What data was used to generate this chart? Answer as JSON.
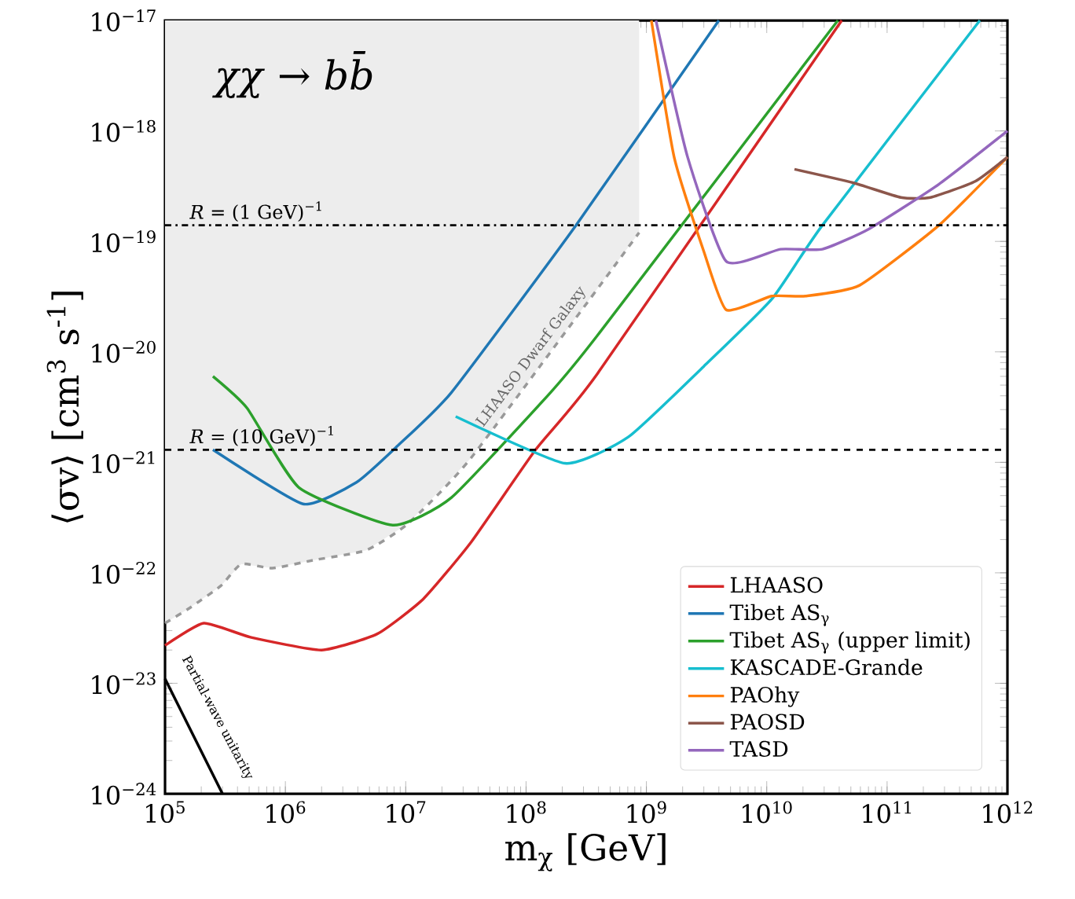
{
  "chart_data": {
    "type": "line",
    "xlabel": "m$_{χ}$ [GeV]",
    "ylabel": "⟨σv⟩ [cm$^{3}$ s$^{-1}$]",
    "log": "xy",
    "grid": false,
    "legend": "bottom right",
    "xlim": [
      100000,
      1000000000000
    ],
    "ylim": [
      1e-24,
      1e-17
    ],
    "xticks": [
      {
        "value": 100000,
        "label": "10$^{5}$"
      },
      {
        "value": 1000000,
        "label": "10$^{6}$"
      },
      {
        "value": 10000000,
        "label": "10$^{7}$"
      },
      {
        "value": 100000000,
        "label": "10$^{8}$"
      },
      {
        "value": 1000000000,
        "label": "10$^{9}$"
      },
      {
        "value": 10000000000,
        "label": "10$^{10}$"
      },
      {
        "value": 100000000000,
        "label": "10$^{11}$"
      },
      {
        "value": 1000000000000,
        "label": "10$^{12}$"
      }
    ],
    "yticks": [
      {
        "value": 1e-24,
        "label": "10$^{−24}$"
      },
      {
        "value": 1e-23,
        "label": "10$^{−23}$"
      },
      {
        "value": 1e-22,
        "label": "10$^{−22}$"
      },
      {
        "value": 1e-21,
        "label": "10$^{−21}$"
      },
      {
        "value": 1e-20,
        "label": "10$^{−20}$"
      },
      {
        "value": 1e-19,
        "label": "10$^{−19}$"
      },
      {
        "value": 1e-18,
        "label": "10$^{−18}$"
      },
      {
        "value": 1e-17,
        "label": "10$^{−17}$"
      }
    ],
    "series": [
      {
        "color": "#999999",
        "line_style": "dashed",
        "x": [
          100000,
          160000,
          290000,
          430000,
          780000,
          1700000,
          4700000,
          10500000,
          35000000,
          870000000
        ],
        "values": [
          3.5e-23,
          4.8e-23,
          7.6e-23,
          1.2e-22,
          1.1e-22,
          1.3e-22,
          1.6e-22,
          2.8e-22,
          1.1e-21,
          1.2e-19
        ],
        "lower": [
          3.5e-23,
          4.8e-23,
          7.6e-23,
          1.2e-22,
          1.1e-22,
          1.3e-22,
          1.6e-22,
          2.8e-22,
          1.1e-21,
          1.2e-19
        ],
        "upper": [
          1e-17,
          1e-17,
          1e-17,
          1e-17,
          1e-17,
          1e-17,
          1e-17,
          1e-17,
          1e-17,
          1e-17
        ]
      },
      {
        "color": "#000000",
        "x": [
          100000,
          300000
        ],
        "values": [
          1.1e-23,
          1e-24
        ]
      },
      {
        "name": "LHAASO",
        "color": "#d62728",
        "x": [
          100000,
          210000,
          520000,
          2000000,
          5800000,
          14000000,
          35000000,
          120000000,
          390000000,
          42000000000
        ],
        "values": [
          2.2e-23,
          3.5e-23,
          2.6e-23,
          2e-23,
          2.8e-23,
          5.8e-23,
          1.9e-22,
          1.3e-21,
          6.3e-21,
          1e-17
        ]
      },
      {
        "name": "Tibet AS$_{γ}$",
        "color": "#1f77b4",
        "x": [
          250000,
          1400000,
          3900000,
          8500000,
          24000000,
          260000000,
          4000000000
        ],
        "values": [
          1.3e-21,
          4.2e-22,
          6.6e-22,
          1.4e-21,
          4.3e-21,
          1.4e-19,
          1e-17
        ]
      },
      {
        "name": "Tibet AS$_{γ}$ (upper limit)",
        "color": "#2ca02c",
        "x": [
          250000,
          480000,
          1300000,
          7800000,
          24000000,
          160000000,
          390000000,
          39000000000
        ],
        "values": [
          6e-21,
          3.1e-21,
          5.9e-22,
          2.7e-22,
          4.8e-22,
          4.3e-21,
          1.4e-20,
          1e-17
        ]
      },
      {
        "name": "KASCADE-Grande",
        "color": "#17becf",
        "x": [
          26000000,
          210000000,
          710000000,
          3000000000,
          11000000000,
          29000000000,
          590000000000
        ],
        "values": [
          2.6e-21,
          9.8e-22,
          1.7e-21,
          7.4e-21,
          3e-20,
          1.4e-19,
          1e-17
        ]
      },
      {
        "name": "PAOhy",
        "color": "#ff7f0e",
        "x": [
          1100000000,
          1700000000,
          3000000000,
          4600000000,
          11000000000,
          21000000000,
          59000000000,
          270000000000,
          1000000000000
        ],
        "values": [
          1e-17,
          5.8e-19,
          8.1e-20,
          2.4e-20,
          3.2e-20,
          3.2e-20,
          4e-20,
          1.4e-19,
          5.8e-19
        ]
      },
      {
        "name": "PAOSD",
        "color": "#8c564b",
        "x": [
          17000000000,
          52000000000,
          130000000000,
          230000000000,
          540000000000,
          1000000000000
        ],
        "values": [
          4.5e-19,
          3.4e-19,
          2.5e-19,
          2.5e-19,
          3.5e-19,
          5.8e-19
        ]
      },
      {
        "name": "TASD",
        "color": "#9467bd",
        "x": [
          1200000000,
          2200000000,
          4600000000,
          13000000000,
          29000000000,
          71000000000,
          270000000000,
          1000000000000
        ],
        "values": [
          1e-17,
          5.8e-19,
          6.6e-20,
          8.5e-20,
          8.5e-20,
          1.3e-19,
          3.3e-19,
          1e-18
        ]
      }
    ],
    "ref_lines": [
      {
        "axis": "y",
        "value": 1.4e-19,
        "label": "*R* = (1 GeV)$^{−1}$",
        "color": "#000000",
        "line_style": "dashdot"
      },
      {
        "axis": "y",
        "value": 1.3e-21,
        "label": "*R* = (10 GeV)$^{−1}$",
        "color": "#000000",
        "line_style": "dashed"
      }
    ],
    "annotations": [
      "*χχ* → *bb̄*",
      "LHAASO Dwarf Galaxy",
      "Partial-wave unitarity"
    ]
  }
}
